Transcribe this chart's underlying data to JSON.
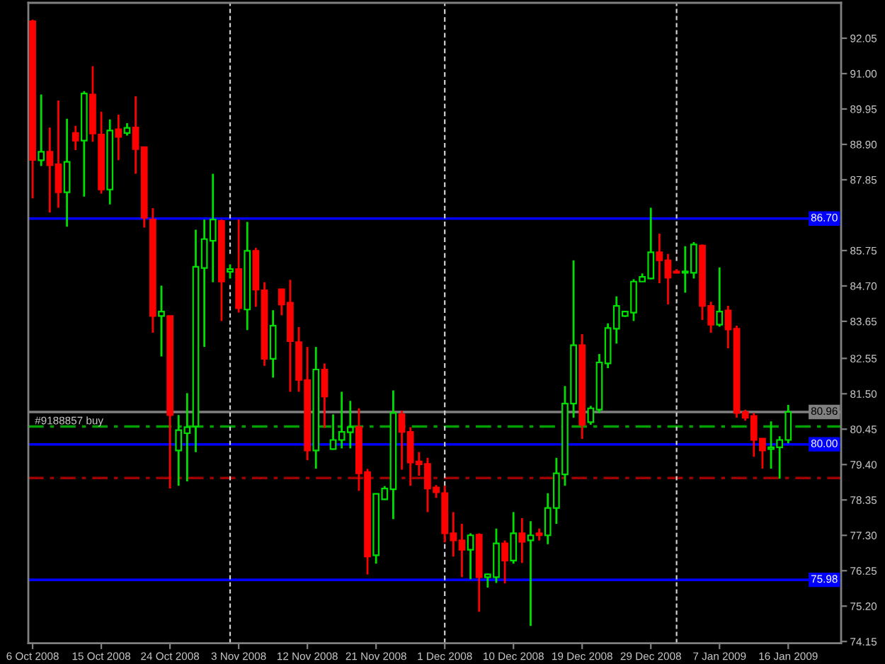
{
  "chart_data": {
    "type": "candlestick",
    "categories": [
      "6 Oct 2008",
      null,
      null,
      null,
      null,
      null,
      null,
      null,
      "15 Oct 2008",
      null,
      null,
      null,
      null,
      null,
      null,
      null,
      "24 Oct 2008",
      null,
      null,
      null,
      null,
      null,
      null,
      null,
      "3 Nov 2008",
      null,
      null,
      null,
      null,
      null,
      null,
      null,
      "12 Nov 2008",
      null,
      null,
      null,
      null,
      null,
      null,
      null,
      "21 Nov 2008",
      null,
      null,
      null,
      null,
      null,
      null,
      null,
      "1 Dec 2008",
      null,
      null,
      null,
      null,
      null,
      null,
      null,
      "10 Dec 2008",
      null,
      null,
      null,
      null,
      null,
      null,
      null,
      "19 Dec 2008",
      null,
      null,
      null,
      null,
      null,
      null,
      null,
      "29 Dec 2008",
      null,
      null,
      null,
      null,
      null,
      null,
      null,
      "7 Jan 2009",
      null,
      null,
      null,
      null,
      null,
      null,
      null,
      "16 Jan 2009"
    ],
    "ohlc": [
      [
        92.55,
        92.6,
        87.3,
        88.44
      ],
      [
        88.43,
        90.38,
        88.26,
        88.68
      ],
      [
        88.68,
        89.4,
        86.88,
        88.28
      ],
      [
        88.31,
        90.2,
        87.02,
        87.48
      ],
      [
        87.48,
        89.66,
        86.46,
        88.38
      ],
      [
        89.24,
        89.45,
        88.73,
        89.01
      ],
      [
        89.01,
        90.48,
        87.35,
        90.41
      ],
      [
        90.38,
        91.22,
        88.98,
        89.22
      ],
      [
        89.19,
        89.87,
        87.44,
        87.56
      ],
      [
        87.56,
        89.64,
        87.12,
        89.31
      ],
      [
        89.35,
        89.78,
        88.43,
        89.12
      ],
      [
        89.24,
        89.53,
        89.16,
        89.39
      ],
      [
        89.4,
        90.33,
        88.03,
        88.76
      ],
      [
        88.82,
        88.82,
        86.43,
        86.72
      ],
      [
        86.67,
        87.01,
        83.31,
        83.81
      ],
      [
        83.81,
        84.71,
        82.61,
        83.94
      ],
      [
        83.81,
        83.81,
        78.69,
        80.87
      ],
      [
        79.82,
        80.87,
        78.77,
        80.42
      ],
      [
        80.33,
        81.52,
        78.9,
        80.51
      ],
      [
        80.53,
        86.37,
        79.77,
        85.27
      ],
      [
        85.23,
        86.67,
        82.89,
        86.09
      ],
      [
        86.04,
        88.03,
        84.81,
        86.67
      ],
      [
        86.63,
        86.67,
        83.66,
        84.83
      ],
      [
        85.12,
        85.34,
        84.92,
        85.2
      ],
      [
        85.2,
        86.67,
        83.91,
        84.04
      ],
      [
        84.0,
        86.6,
        83.39,
        85.74
      ],
      [
        85.74,
        85.83,
        84.08,
        84.59
      ],
      [
        84.57,
        84.81,
        82.33,
        82.54
      ],
      [
        82.54,
        83.98,
        81.98,
        83.52
      ],
      [
        84.6,
        84.6,
        83.83,
        84.15
      ],
      [
        84.2,
        84.88,
        81.56,
        83.06
      ],
      [
        83.03,
        83.48,
        81.56,
        81.91
      ],
      [
        81.91,
        82.89,
        79.53,
        79.82
      ],
      [
        79.82,
        82.89,
        79.28,
        82.22
      ],
      [
        82.22,
        82.4,
        80.49,
        81.42
      ],
      [
        79.86,
        80.89,
        79.84,
        80.13
      ],
      [
        80.13,
        81.56,
        79.88,
        80.37
      ],
      [
        80.36,
        81.29,
        79.88,
        80.51
      ],
      [
        80.51,
        81.07,
        78.62,
        79.14
      ],
      [
        79.18,
        79.27,
        76.14,
        76.67
      ],
      [
        76.71,
        78.53,
        76.46,
        78.53
      ],
      [
        78.37,
        78.76,
        78.35,
        78.69
      ],
      [
        78.67,
        81.6,
        77.78,
        80.93
      ],
      [
        80.89,
        81.0,
        79.25,
        80.37
      ],
      [
        80.37,
        80.51,
        78.77,
        79.46
      ],
      [
        79.49,
        79.77,
        79.07,
        79.41
      ],
      [
        79.42,
        79.6,
        77.99,
        78.69
      ],
      [
        78.72,
        78.79,
        78.41,
        78.58
      ],
      [
        78.55,
        78.77,
        77.09,
        77.36
      ],
      [
        77.36,
        77.99,
        76.67,
        77.15
      ],
      [
        77.15,
        77.64,
        76.06,
        76.87
      ],
      [
        76.87,
        77.36,
        76.0,
        77.3
      ],
      [
        77.32,
        77.36,
        75.03,
        76.06
      ],
      [
        76.06,
        76.17,
        75.75,
        76.14
      ],
      [
        76.06,
        77.5,
        75.89,
        77.06
      ],
      [
        77.06,
        77.15,
        75.87,
        76.55
      ],
      [
        76.55,
        77.99,
        76.46,
        77.36
      ],
      [
        77.36,
        77.81,
        76.48,
        77.11
      ],
      [
        77.15,
        77.72,
        74.61,
        77.3
      ],
      [
        77.36,
        77.5,
        77.15,
        77.3
      ],
      [
        77.3,
        78.55,
        77.04,
        78.11
      ],
      [
        78.11,
        79.6,
        77.64,
        79.14
      ],
      [
        79.11,
        81.73,
        78.77,
        81.21
      ],
      [
        81.21,
        85.46,
        80.79,
        82.94
      ],
      [
        82.94,
        83.27,
        80.16,
        80.58
      ],
      [
        80.66,
        81.14,
        80.58,
        81.07
      ],
      [
        81.03,
        82.68,
        80.93,
        82.43
      ],
      [
        82.4,
        83.59,
        82.26,
        83.45
      ],
      [
        83.43,
        84.39,
        82.99,
        84.11
      ],
      [
        83.81,
        83.94,
        83.78,
        83.94
      ],
      [
        83.91,
        84.9,
        83.66,
        84.83
      ],
      [
        84.83,
        85.07,
        84.83,
        84.97
      ],
      [
        84.92,
        87.02,
        84.9,
        85.7
      ],
      [
        85.7,
        86.25,
        84.78,
        85.46
      ],
      [
        85.46,
        85.65,
        84.15,
        84.95
      ],
      [
        85.13,
        85.2,
        85.07,
        85.09
      ],
      [
        85.09,
        85.88,
        84.5,
        85.13
      ],
      [
        85.09,
        86.0,
        84.92,
        85.93
      ],
      [
        85.9,
        85.93,
        83.69,
        84.11
      ],
      [
        84.11,
        84.23,
        83.31,
        83.55
      ],
      [
        83.55,
        85.25,
        83.49,
        83.94
      ],
      [
        83.97,
        84.11,
        82.85,
        83.41
      ],
      [
        83.43,
        83.52,
        80.79,
        80.93
      ],
      [
        80.96,
        81.03,
        80.7,
        80.79
      ],
      [
        80.84,
        80.93,
        79.63,
        80.13
      ],
      [
        80.17,
        80.17,
        79.28,
        79.82
      ],
      [
        79.86,
        80.68,
        79.28,
        79.91
      ],
      [
        79.91,
        80.24,
        78.98,
        80.13
      ],
      [
        80.13,
        81.17,
        80.03,
        80.96
      ]
    ],
    "colors": [
      "#ff0000",
      "#00e000",
      "#ff0000",
      "#ff0000",
      "#00e000",
      "#ff0000",
      "#00e000",
      "#ff0000",
      "#ff0000",
      "#00e000",
      "#ff0000",
      "#00e000",
      "#ff0000",
      "#ff0000",
      "#ff0000",
      "#00e000",
      "#ff0000",
      "#00e000",
      "#00e000",
      "#00e000",
      "#00e000",
      "#00e000",
      "#ff0000",
      "#00e000",
      "#ff0000",
      "#00e000",
      "#ff0000",
      "#ff0000",
      "#00e000",
      "#ff0000",
      "#ff0000",
      "#ff0000",
      "#ff0000",
      "#00e000",
      "#ff0000",
      "#00e000",
      "#00e000",
      "#00e000",
      "#ff0000",
      "#ff0000",
      "#00e000",
      "#00e000",
      "#00e000",
      "#ff0000",
      "#ff0000",
      "#ff0000",
      "#ff0000",
      "#ff0000",
      "#ff0000",
      "#ff0000",
      "#ff0000",
      "#00e000",
      "#ff0000",
      "#00e000",
      "#00e000",
      "#ff0000",
      "#00e000",
      "#ff0000",
      "#00e000",
      "#ff0000",
      "#00e000",
      "#00e000",
      "#00e000",
      "#00e000",
      "#ff0000",
      "#00e000",
      "#00e000",
      "#00e000",
      "#00e000",
      "#00e000",
      "#00e000",
      "#00e000",
      "#00e000",
      "#ff0000",
      "#ff0000",
      "#ff0000",
      "#00e000",
      "#00e000",
      "#ff0000",
      "#ff0000",
      "#00e000",
      "#ff0000",
      "#ff0000",
      "#ff0000",
      "#ff0000",
      "#ff0000",
      "#00e000",
      "#00e000",
      "#00e000"
    ],
    "ylim": [
      74.1,
      93.1
    ],
    "yticks": [
      92.05,
      {
        "value": 91.0,
        "label": "91.00"
      },
      89.95,
      {
        "value": 88.9,
        "label": "88.90"
      },
      87.85,
      85.75,
      {
        "value": 84.7,
        "label": "84.70"
      },
      83.65,
      82.55,
      {
        "value": 81.5,
        "label": "81.50"
      },
      80.45,
      {
        "value": 79.4,
        "label": "79.40"
      },
      78.35,
      {
        "value": 77.3,
        "label": "77.30"
      },
      76.25,
      {
        "value": 75.2,
        "label": "75.20"
      },
      74.15
    ],
    "ref_lines": [
      {
        "axis": "y",
        "value": 86.7,
        "label": "86.70",
        "color": "#0000ff",
        "line_style": "solid"
      },
      {
        "axis": "y",
        "value": 80.96,
        "label": "80.96",
        "color": "#808080",
        "line_style": "solid"
      },
      {
        "axis": "y",
        "value": 80.53,
        "label": "#9188857 buy",
        "color": "#00a000",
        "line_style": "dashdot"
      },
      {
        "axis": "y",
        "value": 80.0,
        "label": "80.00",
        "color": "#0000ff",
        "line_style": "solid"
      },
      {
        "axis": "y",
        "value": 79.0,
        "color": "#a00000",
        "line_style": "dashdot"
      },
      {
        "axis": "y",
        "value": 75.98,
        "label": "75.98",
        "color": "#0000ff",
        "line_style": "solid"
      },
      {
        "axis": "x",
        "value": "1 Dec 2008",
        "color": "#d0d0d0",
        "line_style": "dashed"
      }
    ]
  }
}
